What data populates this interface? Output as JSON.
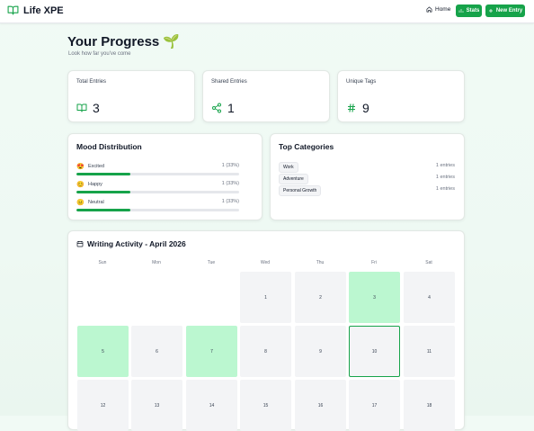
{
  "nav": {
    "brand": "Life XPE",
    "home": "Home",
    "stats": "Stats",
    "new_entry": "New Entry"
  },
  "page": {
    "title": "Your Progress",
    "title_emoji": "🌱",
    "subtitle": "Look how far you've come"
  },
  "stats": [
    {
      "label": "Total Entries",
      "value": "3",
      "icon": "book-icon"
    },
    {
      "label": "Shared Entries",
      "value": "1",
      "icon": "share-icon"
    },
    {
      "label": "Unique Tags",
      "value": "9",
      "icon": "hash-icon"
    }
  ],
  "mood": {
    "title": "Mood Distribution",
    "items": [
      {
        "emoji": "😍",
        "label": "Excited",
        "count": "1 (33%)",
        "fraction": 0.33
      },
      {
        "emoji": "😊",
        "label": "Happy",
        "count": "1 (33%)",
        "fraction": 0.33
      },
      {
        "emoji": "😐",
        "label": "Neutral",
        "count": "1 (33%)",
        "fraction": 0.33
      }
    ]
  },
  "categories": {
    "title": "Top Categories",
    "items": [
      {
        "tag": "Work",
        "count": "1 entries"
      },
      {
        "tag": "Adventure",
        "count": "1 entries"
      },
      {
        "tag": "Personal Growth",
        "count": "1 entries"
      }
    ]
  },
  "activity": {
    "title": "Writing Activity - April 2026",
    "weekdays": [
      "Sun",
      "Mon",
      "Tue",
      "Wed",
      "Thu",
      "Fri",
      "Sat"
    ],
    "rows": [
      [
        null,
        null,
        null,
        {
          "day": "1"
        },
        {
          "day": "2"
        },
        {
          "day": "3",
          "active": true
        },
        {
          "day": "4"
        }
      ],
      [
        {
          "day": "5",
          "active": true
        },
        {
          "day": "6"
        },
        {
          "day": "7",
          "active": true
        },
        {
          "day": "8"
        },
        {
          "day": "9"
        },
        {
          "day": "10",
          "today": true
        },
        {
          "day": "11"
        }
      ],
      [
        {
          "day": "12"
        },
        {
          "day": "13"
        },
        {
          "day": "14"
        },
        {
          "day": "15"
        },
        {
          "day": "16"
        },
        {
          "day": "17"
        },
        {
          "day": "18"
        }
      ]
    ]
  },
  "colors": {
    "accent": "#16a34a",
    "active_day": "#bbf7d0"
  }
}
